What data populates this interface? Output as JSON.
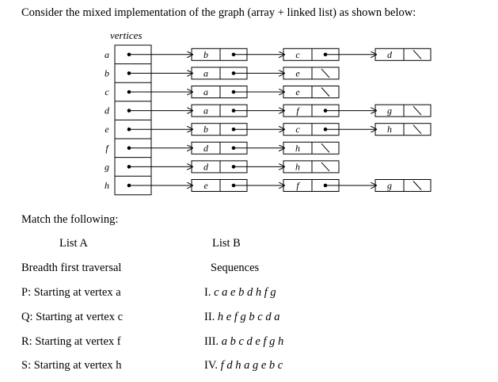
{
  "intro": "Consider the mixed implementation  of the graph (array + linked list)  as  shown below:",
  "diagram": {
    "vertices_label": "vertices",
    "rows": [
      {
        "vertex": "a",
        "nodes": [
          "b",
          "c",
          "d"
        ]
      },
      {
        "vertex": "b",
        "nodes": [
          "a",
          "e"
        ]
      },
      {
        "vertex": "c",
        "nodes": [
          "a",
          "e"
        ]
      },
      {
        "vertex": "d",
        "nodes": [
          "a",
          "f",
          "g"
        ]
      },
      {
        "vertex": "e",
        "nodes": [
          "b",
          "c",
          "h"
        ]
      },
      {
        "vertex": "f",
        "nodes": [
          "d",
          "h"
        ]
      },
      {
        "vertex": "g",
        "nodes": [
          "d",
          "h"
        ]
      },
      {
        "vertex": "h",
        "nodes": [
          "e",
          "f",
          "g"
        ]
      }
    ]
  },
  "match_heading": "Match the following:",
  "list_a_heading": "List A",
  "list_b_heading": "List B",
  "list_a_sub": "Breadth first traversal",
  "list_b_sub": "Sequences",
  "list_a": [
    "P: Starting at vertex a",
    "Q: Starting at vertex c",
    "R: Starting at vertex f",
    "S: Starting at vertex h"
  ],
  "list_b": [
    {
      "num": "I.",
      "seq": "c a e b d h f g"
    },
    {
      "num": "II.",
      "seq": "h e f g b c d a"
    },
    {
      "num": "III.",
      "seq": "a b c d e f g h"
    },
    {
      "num": "IV.",
      "seq": "f d h a g e b c"
    }
  ]
}
